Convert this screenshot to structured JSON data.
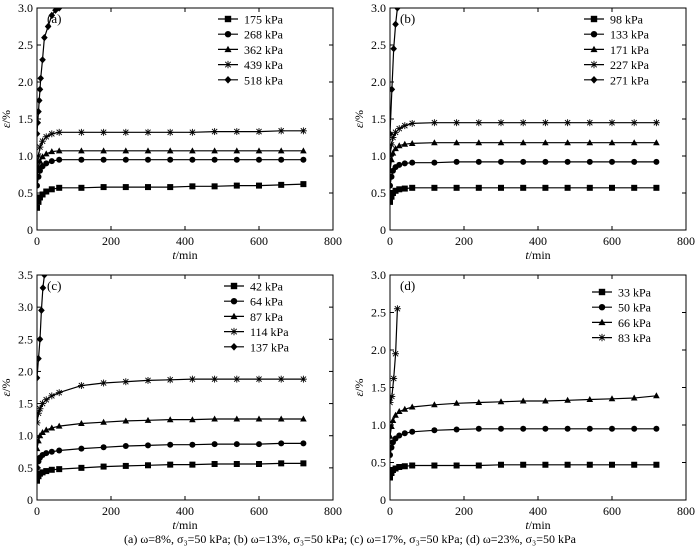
{
  "caption": "(a) ω=8%, σ₃=50 kPa; (b) ω=13%, σ₃=50 kPa; (c) ω=17%, σ₃=50 kPa; (d) ω=23%, σ₃=50 kPa",
  "marker_legend": [
    "square",
    "circle",
    "triangle",
    "asterisk",
    "diamond"
  ],
  "chart_data": [
    {
      "type": "line",
      "panel_label": "(a)",
      "xlabel": "t/min",
      "ylabel": "ε/%",
      "xlim": [
        0,
        800
      ],
      "ylim": [
        0,
        3.0
      ],
      "xticks": [
        0,
        200,
        400,
        600,
        800
      ],
      "yticks": [
        0.0,
        0.5,
        1.0,
        1.5,
        2.0,
        2.5,
        3.0
      ],
      "ytick_labels": [
        "0",
        "0.5",
        "1.0",
        "1.5",
        "2.0",
        "2.5",
        "3.0"
      ],
      "grid": false,
      "legend_position": "top-right",
      "series": [
        {
          "name": "175 kPa",
          "marker": "square",
          "x": [
            0,
            4,
            8,
            15,
            25,
            40,
            60,
            120,
            180,
            240,
            300,
            360,
            420,
            480,
            540,
            600,
            660,
            720
          ],
          "y": [
            0.3,
            0.38,
            0.44,
            0.48,
            0.52,
            0.55,
            0.57,
            0.57,
            0.58,
            0.58,
            0.58,
            0.58,
            0.59,
            0.59,
            0.6,
            0.6,
            0.61,
            0.62
          ]
        },
        {
          "name": "268 kPa",
          "marker": "circle",
          "x": [
            0,
            4,
            8,
            15,
            25,
            40,
            60,
            120,
            180,
            240,
            300,
            360,
            420,
            480,
            540,
            600,
            660,
            720
          ],
          "y": [
            0.6,
            0.72,
            0.8,
            0.86,
            0.9,
            0.93,
            0.95,
            0.95,
            0.95,
            0.95,
            0.95,
            0.95,
            0.95,
            0.95,
            0.95,
            0.95,
            0.95,
            0.95
          ]
        },
        {
          "name": "362 kPa",
          "marker": "triangle",
          "x": [
            0,
            4,
            8,
            15,
            25,
            40,
            60,
            120,
            180,
            240,
            300,
            360,
            420,
            480,
            540,
            600,
            660,
            720
          ],
          "y": [
            0.72,
            0.85,
            0.93,
            0.99,
            1.03,
            1.06,
            1.07,
            1.07,
            1.07,
            1.07,
            1.07,
            1.07,
            1.07,
            1.07,
            1.07,
            1.07,
            1.07,
            1.07
          ]
        },
        {
          "name": "439 kPa",
          "marker": "asterisk",
          "x": [
            0,
            4,
            8,
            15,
            25,
            40,
            60,
            120,
            180,
            240,
            300,
            360,
            420,
            480,
            540,
            600,
            660,
            720
          ],
          "y": [
            0.85,
            1.0,
            1.12,
            1.2,
            1.26,
            1.3,
            1.32,
            1.32,
            1.32,
            1.32,
            1.32,
            1.32,
            1.32,
            1.33,
            1.33,
            1.33,
            1.34,
            1.34
          ]
        },
        {
          "name": "518 kPa",
          "marker": "diamond",
          "x": [
            0,
            2,
            4,
            6,
            8,
            10,
            15,
            20,
            30,
            40,
            50,
            60
          ],
          "y": [
            1.3,
            1.45,
            1.6,
            1.75,
            1.9,
            2.05,
            2.3,
            2.6,
            2.75,
            2.9,
            2.97,
            3.0
          ]
        }
      ]
    },
    {
      "type": "line",
      "panel_label": "(b)",
      "xlabel": "t/min",
      "ylabel": "ε/%",
      "xlim": [
        0,
        800
      ],
      "ylim": [
        0,
        3.0
      ],
      "xticks": [
        0,
        200,
        400,
        600,
        800
      ],
      "yticks": [
        0.0,
        0.5,
        1.0,
        1.5,
        2.0,
        2.5,
        3.0
      ],
      "ytick_labels": [
        "0",
        "0.5",
        "1.0",
        "1.5",
        "2.0",
        "2.5",
        "3.0"
      ],
      "grid": false,
      "legend_position": "top-right",
      "series": [
        {
          "name": "98 kPa",
          "marker": "square",
          "x": [
            0,
            4,
            8,
            15,
            25,
            40,
            60,
            120,
            180,
            240,
            300,
            360,
            420,
            480,
            540,
            600,
            660,
            720
          ],
          "y": [
            0.38,
            0.45,
            0.5,
            0.53,
            0.55,
            0.56,
            0.57,
            0.57,
            0.57,
            0.57,
            0.57,
            0.57,
            0.57,
            0.57,
            0.57,
            0.57,
            0.57,
            0.57
          ]
        },
        {
          "name": "133 kPa",
          "marker": "circle",
          "x": [
            0,
            4,
            8,
            15,
            25,
            40,
            60,
            120,
            180,
            240,
            300,
            360,
            420,
            480,
            540,
            600,
            660,
            720
          ],
          "y": [
            0.6,
            0.72,
            0.8,
            0.85,
            0.88,
            0.9,
            0.91,
            0.91,
            0.92,
            0.92,
            0.92,
            0.92,
            0.92,
            0.92,
            0.92,
            0.92,
            0.92,
            0.92
          ]
        },
        {
          "name": "171 kPa",
          "marker": "triangle",
          "x": [
            0,
            4,
            8,
            15,
            25,
            40,
            60,
            120,
            180,
            240,
            300,
            360,
            420,
            480,
            540,
            600,
            660,
            720
          ],
          "y": [
            0.8,
            0.95,
            1.04,
            1.1,
            1.14,
            1.16,
            1.17,
            1.18,
            1.18,
            1.18,
            1.18,
            1.18,
            1.18,
            1.18,
            1.18,
            1.18,
            1.18,
            1.18
          ]
        },
        {
          "name": "227 kPa",
          "marker": "asterisk",
          "x": [
            0,
            4,
            8,
            15,
            25,
            40,
            60,
            120,
            180,
            240,
            300,
            360,
            420,
            480,
            540,
            600,
            660,
            720
          ],
          "y": [
            1.0,
            1.15,
            1.25,
            1.32,
            1.37,
            1.41,
            1.44,
            1.45,
            1.45,
            1.45,
            1.45,
            1.45,
            1.45,
            1.45,
            1.45,
            1.45,
            1.45,
            1.45
          ]
        },
        {
          "name": "271 kPa",
          "marker": "diamond",
          "x": [
            0,
            5,
            10,
            15,
            20
          ],
          "y": [
            1.3,
            1.9,
            2.45,
            2.78,
            3.0
          ]
        }
      ]
    },
    {
      "type": "line",
      "panel_label": "(c)",
      "xlabel": "t/min",
      "ylabel": "ε/%",
      "xlim": [
        0,
        800
      ],
      "ylim": [
        0,
        3.5
      ],
      "xticks": [
        0,
        200,
        400,
        600,
        800
      ],
      "yticks": [
        0.0,
        0.5,
        1.0,
        1.5,
        2.0,
        2.5,
        3.0,
        3.5
      ],
      "ytick_labels": [
        "0",
        "0.5",
        "1.0",
        "1.5",
        "2.0",
        "2.5",
        "3.0",
        "3.5"
      ],
      "grid": false,
      "legend_position": "top-right",
      "series": [
        {
          "name": "42 kPa",
          "marker": "square",
          "x": [
            0,
            4,
            8,
            15,
            25,
            40,
            60,
            120,
            180,
            240,
            300,
            360,
            420,
            480,
            540,
            600,
            660,
            720
          ],
          "y": [
            0.3,
            0.37,
            0.41,
            0.43,
            0.45,
            0.47,
            0.48,
            0.5,
            0.52,
            0.53,
            0.54,
            0.55,
            0.55,
            0.56,
            0.56,
            0.56,
            0.57,
            0.57
          ]
        },
        {
          "name": "64 kPa",
          "marker": "circle",
          "x": [
            0,
            4,
            8,
            15,
            25,
            40,
            60,
            120,
            180,
            240,
            300,
            360,
            420,
            480,
            540,
            600,
            660,
            720
          ],
          "y": [
            0.5,
            0.6,
            0.66,
            0.7,
            0.73,
            0.75,
            0.77,
            0.8,
            0.82,
            0.84,
            0.85,
            0.86,
            0.86,
            0.87,
            0.87,
            0.87,
            0.88,
            0.88
          ]
        },
        {
          "name": "87 kPa",
          "marker": "triangle",
          "x": [
            0,
            4,
            8,
            15,
            25,
            40,
            60,
            120,
            180,
            240,
            300,
            360,
            420,
            480,
            540,
            600,
            660,
            720
          ],
          "y": [
            0.8,
            0.92,
            1.0,
            1.05,
            1.09,
            1.12,
            1.15,
            1.19,
            1.21,
            1.23,
            1.24,
            1.25,
            1.25,
            1.26,
            1.26,
            1.26,
            1.26,
            1.26
          ]
        },
        {
          "name": "114 kPa",
          "marker": "asterisk",
          "x": [
            0,
            4,
            8,
            15,
            25,
            40,
            60,
            120,
            180,
            240,
            300,
            360,
            420,
            480,
            540,
            600,
            660,
            720
          ],
          "y": [
            1.2,
            1.35,
            1.42,
            1.5,
            1.56,
            1.62,
            1.67,
            1.78,
            1.82,
            1.84,
            1.86,
            1.87,
            1.88,
            1.88,
            1.88,
            1.88,
            1.88,
            1.88
          ]
        },
        {
          "name": "137 kPa",
          "marker": "diamond",
          "x": [
            0,
            4,
            8,
            12,
            16,
            20
          ],
          "y": [
            1.9,
            2.2,
            2.5,
            2.95,
            3.3,
            3.5
          ]
        }
      ]
    },
    {
      "type": "line",
      "panel_label": "(d)",
      "xlabel": "t/min",
      "ylabel": "ε/%",
      "xlim": [
        0,
        800
      ],
      "ylim": [
        0,
        3.0
      ],
      "xticks": [
        0,
        200,
        400,
        600,
        800
      ],
      "yticks": [
        0.0,
        0.5,
        1.0,
        1.5,
        2.0,
        2.5,
        3.0
      ],
      "ytick_labels": [
        "0",
        "0.5",
        "1.0",
        "1.5",
        "2.0",
        "2.5",
        "3.0"
      ],
      "grid": false,
      "legend_position": "top-right",
      "series": [
        {
          "name": "33 kPa",
          "marker": "square",
          "x": [
            0,
            4,
            8,
            15,
            25,
            40,
            60,
            120,
            180,
            240,
            300,
            360,
            420,
            480,
            540,
            600,
            660,
            720
          ],
          "y": [
            0.3,
            0.36,
            0.4,
            0.42,
            0.44,
            0.45,
            0.46,
            0.46,
            0.46,
            0.46,
            0.47,
            0.47,
            0.47,
            0.47,
            0.47,
            0.47,
            0.47,
            0.47
          ]
        },
        {
          "name": "50 kPa",
          "marker": "circle",
          "x": [
            0,
            4,
            8,
            15,
            25,
            40,
            60,
            120,
            180,
            240,
            300,
            360,
            420,
            480,
            540,
            600,
            660,
            720
          ],
          "y": [
            0.6,
            0.7,
            0.77,
            0.82,
            0.86,
            0.89,
            0.91,
            0.93,
            0.94,
            0.95,
            0.95,
            0.95,
            0.95,
            0.95,
            0.95,
            0.95,
            0.95,
            0.95
          ]
        },
        {
          "name": "66 kPa",
          "marker": "triangle",
          "x": [
            0,
            4,
            8,
            15,
            25,
            40,
            60,
            120,
            180,
            240,
            300,
            360,
            420,
            480,
            540,
            600,
            660,
            720
          ],
          "y": [
            0.85,
            0.98,
            1.06,
            1.13,
            1.18,
            1.21,
            1.24,
            1.27,
            1.29,
            1.3,
            1.31,
            1.32,
            1.32,
            1.33,
            1.34,
            1.35,
            1.36,
            1.39
          ]
        },
        {
          "name": "83 kPa",
          "marker": "asterisk",
          "x": [
            0,
            5,
            10,
            15,
            20
          ],
          "y": [
            1.3,
            1.38,
            1.62,
            1.95,
            2.55
          ]
        }
      ]
    }
  ]
}
